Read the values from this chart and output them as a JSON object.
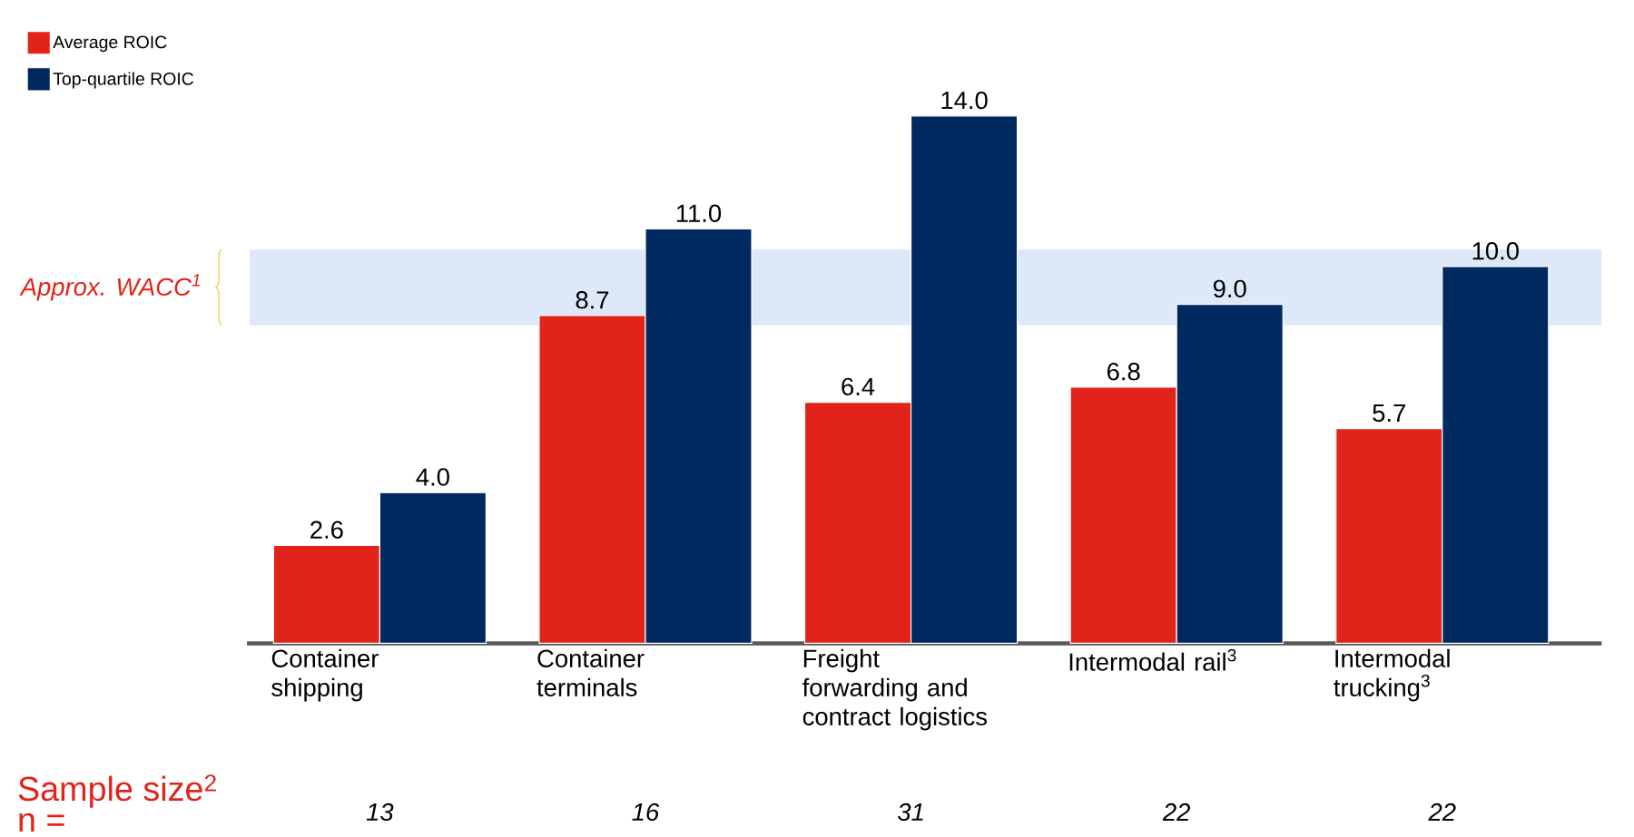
{
  "chart_data": {
    "type": "bar",
    "categories": [
      "Container shipping",
      "Container terminals",
      "Freight forwarding and contract logistics",
      "Intermodal rail$^{3}$",
      "Intermodal trucking$^{3}$"
    ],
    "series": [
      {
        "name": "Average ROIC",
        "color": "#e2231a",
        "values": [
          2.6,
          8.7,
          6.4,
          6.8,
          5.7
        ],
        "value_labels": [
          "2.6",
          "8.7",
          "6.4",
          "6.8",
          "5.7"
        ]
      },
      {
        "name": "Top-quartile ROIC",
        "color": "#002960",
        "values": [
          4.0,
          11.0,
          14.0,
          9.0,
          10.0
        ],
        "value_labels": [
          "4.0",
          "11.0",
          "14.0",
          "9.0",
          "10.0"
        ]
      }
    ],
    "bands": [
      {
        "axis": "y",
        "from": 8.45,
        "to": 10.45,
        "label": "Approx. WACC$^{1}$",
        "color": "#dde9f8"
      }
    ],
    "annotations": [
      "Sample size$^{2}$",
      "n =",
      "13",
      "16",
      "31",
      "22",
      "22"
    ],
    "legend": "top left",
    "tick_labels": "x"
  }
}
